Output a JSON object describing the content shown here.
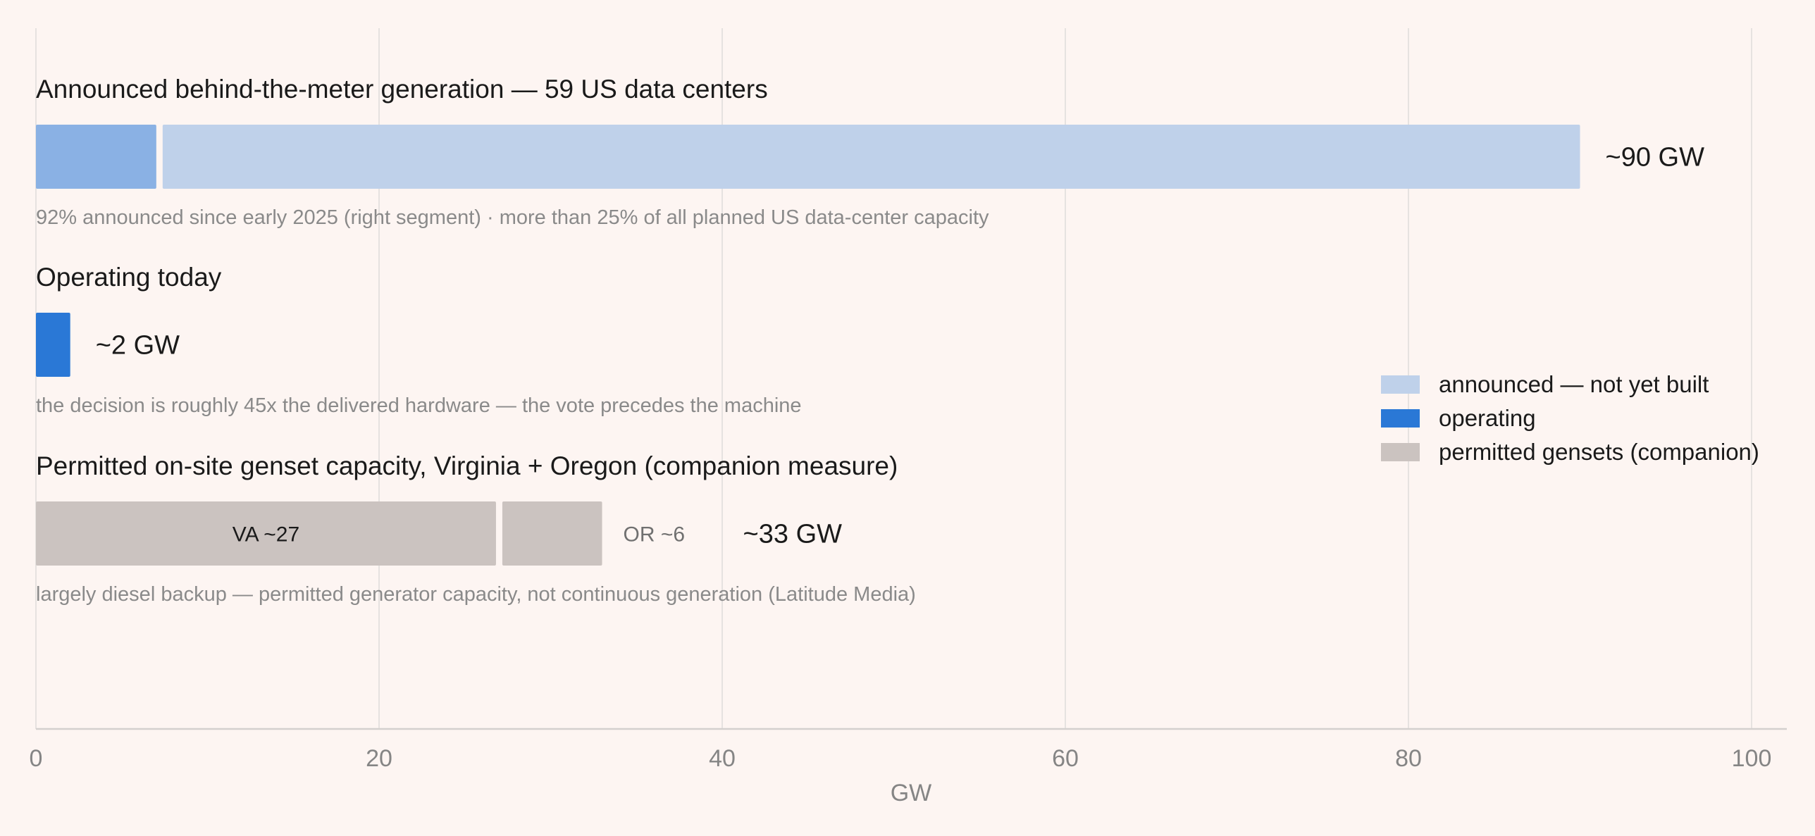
{
  "colors": {
    "background": "#fdf5f2",
    "announced": "#bfd1ea",
    "announced_early": "#8ab1e4",
    "operating": "#2a78d6",
    "gensets": "#cbc3c0"
  },
  "chart_data": {
    "type": "bar",
    "orientation": "horizontal",
    "stacked": true,
    "xlabel": "GW",
    "xlim": [
      0,
      100
    ],
    "xticks": [
      0,
      20,
      40,
      60,
      80,
      100
    ],
    "grid": true,
    "legend_position": "right",
    "sections": [
      {
        "title": "Announced behind-the-meter generation — 59 US data centers",
        "note": "92% announced since early 2025 (right segment) · more than 25% of all planned US data-center capacity",
        "total_label": "~90 GW",
        "segments": [
          {
            "series": "announced — not yet built",
            "start": 0,
            "value": 7.2,
            "color": "#8ab1e4",
            "label": ""
          },
          {
            "series": "announced — not yet built",
            "start": 7.2,
            "value": 82.8,
            "color": "#bfd1ea",
            "label": ""
          }
        ]
      },
      {
        "title": "Operating today",
        "note": "the decision is roughly 45x the delivered hardware — the vote precedes the machine",
        "total_label": "~2 GW",
        "segments": [
          {
            "series": "operating",
            "start": 0,
            "value": 2,
            "color": "#2a78d6",
            "label": ""
          }
        ]
      },
      {
        "title": "Permitted on-site genset capacity, Virginia + Oregon (companion measure)",
        "note": "largely diesel backup — permitted generator capacity, not continuous generation (Latitude Media)",
        "total_label": "~33 GW",
        "segments": [
          {
            "series": "permitted gensets (companion)",
            "start": 0,
            "value": 27,
            "color": "#cbc3c0",
            "label": "VA ~27",
            "label_position": "inside"
          },
          {
            "series": "permitted gensets (companion)",
            "start": 27,
            "value": 6,
            "color": "#cbc3c0",
            "label": "OR ~6",
            "label_position": "outside"
          }
        ]
      }
    ],
    "legend": [
      {
        "label": "announced — not yet built",
        "color": "#bfd1ea"
      },
      {
        "label": "operating",
        "color": "#2a78d6"
      },
      {
        "label": "permitted gensets (companion)",
        "color": "#cbc3c0"
      }
    ]
  }
}
